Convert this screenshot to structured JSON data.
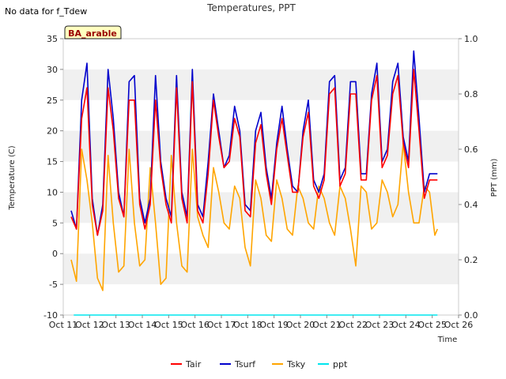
{
  "note": "No data for f_Tdew",
  "chart_data": {
    "type": "line",
    "title": "Temperatures, PPT",
    "xlabel": "Time",
    "ylabel": "Temperature (C)",
    "ylabel_right": "PPT (mm)",
    "badge": "BA_arable",
    "ylim": [
      -10,
      35
    ],
    "ylim_right": [
      0.0,
      1.0
    ],
    "xlim": [
      11,
      26
    ],
    "x_ticks": [
      11,
      12,
      13,
      14,
      15,
      16,
      17,
      18,
      19,
      20,
      21,
      22,
      23,
      24,
      25,
      26
    ],
    "x_tick_labels": [
      "Oct 11",
      "Oct 12",
      "Oct 13",
      "Oct 14",
      "Oct 15",
      "Oct 16",
      "Oct 17",
      "Oct 18",
      "Oct 19",
      "Oct 20",
      "Oct 21",
      "Oct 22",
      "Oct 23",
      "Oct 24",
      "Oct 25",
      "Oct 26"
    ],
    "y_ticks": [
      -10,
      -5,
      0,
      5,
      10,
      15,
      20,
      25,
      30,
      35
    ],
    "y_right_ticks": [
      "0.0",
      "0.2",
      "0.4",
      "0.6",
      "0.8",
      "1.0"
    ],
    "y_right_values": [
      0.0,
      0.2,
      0.4,
      0.6,
      0.8,
      1.0
    ],
    "legend": [
      "Tair",
      "Tsurf",
      "Tsky",
      "ppt"
    ],
    "series": [
      {
        "name": "Tsky",
        "color": "#ffa500",
        "x": [
          11.3,
          11.5,
          11.7,
          11.9,
          12.1,
          12.3,
          12.5,
          12.7,
          12.9,
          13.1,
          13.3,
          13.5,
          13.7,
          13.9,
          14.1,
          14.3,
          14.5,
          14.7,
          14.9,
          15.1,
          15.3,
          15.5,
          15.7,
          15.9,
          16.1,
          16.3,
          16.5,
          16.7,
          16.9,
          17.1,
          17.3,
          17.5,
          17.7,
          17.9,
          18.1,
          18.3,
          18.5,
          18.7,
          18.9,
          19.1,
          19.3,
          19.5,
          19.7,
          19.9,
          20.1,
          20.3,
          20.5,
          20.7,
          20.9,
          21.1,
          21.3,
          21.5,
          21.7,
          21.9,
          22.1,
          22.3,
          22.5,
          22.7,
          22.9,
          23.1,
          23.3,
          23.5,
          23.7,
          23.9,
          24.1,
          24.3,
          24.5,
          24.7,
          24.9,
          25.1,
          25.2
        ],
        "values": [
          -1,
          -4.5,
          17,
          12,
          5,
          -4,
          -6,
          16,
          5,
          -3,
          -2,
          17,
          5,
          -2,
          -1,
          14,
          5,
          -5,
          -4,
          16,
          5,
          -2,
          -3,
          17,
          6,
          3,
          1,
          14,
          10,
          5,
          4,
          11,
          9,
          1,
          -2,
          12,
          9,
          3,
          2,
          12,
          9,
          4,
          3,
          11,
          9,
          5,
          4,
          11,
          9,
          5,
          3,
          11,
          9,
          4,
          -2,
          11,
          10,
          4,
          5,
          12,
          10,
          6,
          8,
          18,
          10,
          5,
          5,
          11,
          10,
          3,
          4
        ]
      },
      {
        "name": "Tsurf",
        "color": "#0000cc",
        "x": [
          11.3,
          11.5,
          11.7,
          11.9,
          12.1,
          12.3,
          12.5,
          12.7,
          12.9,
          13.1,
          13.3,
          13.5,
          13.7,
          13.9,
          14.1,
          14.3,
          14.5,
          14.7,
          14.9,
          15.1,
          15.3,
          15.5,
          15.7,
          15.9,
          16.1,
          16.3,
          16.5,
          16.7,
          16.9,
          17.1,
          17.3,
          17.5,
          17.7,
          17.9,
          18.1,
          18.3,
          18.5,
          18.7,
          18.9,
          19.1,
          19.3,
          19.5,
          19.7,
          19.9,
          20.1,
          20.3,
          20.5,
          20.7,
          20.9,
          21.1,
          21.3,
          21.5,
          21.7,
          21.9,
          22.1,
          22.3,
          22.5,
          22.7,
          22.9,
          23.1,
          23.3,
          23.5,
          23.7,
          23.9,
          24.1,
          24.3,
          24.5,
          24.7,
          24.9,
          25.1,
          25.2
        ],
        "values": [
          7,
          4,
          25,
          31,
          9,
          3,
          8,
          30,
          22,
          10,
          6,
          28,
          29,
          9,
          5,
          9,
          29,
          15,
          9,
          6,
          29,
          10,
          6,
          30,
          8,
          6,
          15,
          26,
          20,
          14,
          16,
          24,
          20,
          8,
          7,
          20,
          23,
          14,
          9,
          18,
          24,
          17,
          11,
          10,
          20,
          25,
          12,
          10,
          13,
          28,
          29,
          12,
          14,
          28,
          28,
          13,
          13,
          26,
          31,
          15,
          17,
          28,
          31,
          19,
          15,
          33,
          22,
          10,
          13,
          13,
          13
        ]
      },
      {
        "name": "Tair",
        "color": "#ff0000",
        "x": [
          11.3,
          11.5,
          11.7,
          11.9,
          12.1,
          12.3,
          12.5,
          12.7,
          12.9,
          13.1,
          13.3,
          13.5,
          13.7,
          13.9,
          14.1,
          14.3,
          14.5,
          14.7,
          14.9,
          15.1,
          15.3,
          15.5,
          15.7,
          15.9,
          16.1,
          16.3,
          16.5,
          16.7,
          16.9,
          17.1,
          17.3,
          17.5,
          17.7,
          17.9,
          18.1,
          18.3,
          18.5,
          18.7,
          18.9,
          19.1,
          19.3,
          19.5,
          19.7,
          19.9,
          20.1,
          20.3,
          20.5,
          20.7,
          20.9,
          21.1,
          21.3,
          21.5,
          21.7,
          21.9,
          22.1,
          22.3,
          22.5,
          22.7,
          22.9,
          23.1,
          23.3,
          23.5,
          23.7,
          23.9,
          24.1,
          24.3,
          24.5,
          24.7,
          24.9,
          25.1,
          25.2
        ],
        "values": [
          6,
          4,
          22,
          27,
          8,
          3,
          7,
          27,
          20,
          9,
          6,
          25,
          25,
          8,
          4,
          8,
          25,
          14,
          8,
          5,
          27,
          9,
          5,
          28,
          7,
          5,
          13,
          25,
          19,
          14,
          15,
          22,
          19,
          7,
          6,
          18,
          21,
          13,
          8,
          17,
          22,
          16,
          10,
          10,
          19,
          23,
          11,
          9,
          12,
          26,
          27,
          11,
          13,
          26,
          26,
          12,
          12,
          25,
          29,
          14,
          16,
          26,
          29,
          18,
          14,
          30,
          20,
          9,
          12,
          12,
          12
        ]
      },
      {
        "name": "ppt",
        "color": "#00e5ee",
        "x": [
          11.4,
          25.2
        ],
        "values": [
          0.0,
          0.0
        ],
        "axis": "right"
      }
    ]
  }
}
